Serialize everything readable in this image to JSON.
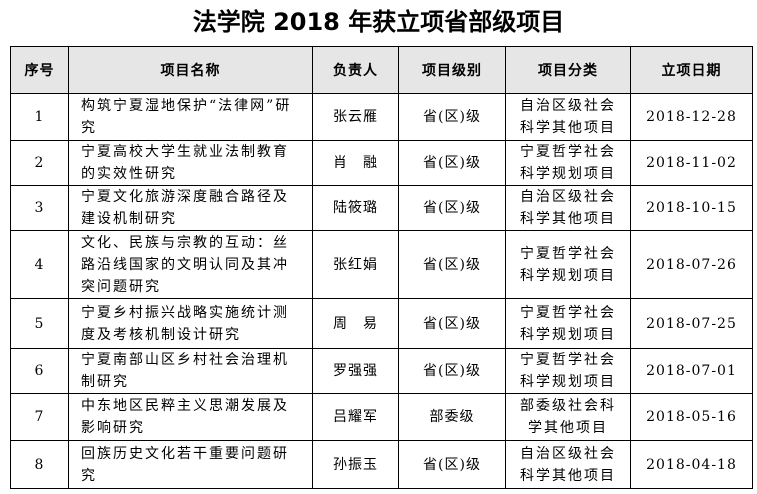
{
  "title": "法学院 2018 年获立项省部级项目",
  "table": {
    "headers": [
      "序号",
      "项目名称",
      "负责人",
      "项目级别",
      "项目分类",
      "立项日期"
    ],
    "rows": [
      [
        "1",
        "构筑宁夏湿地保护“法律网”研究",
        "张云雁",
        "省(区)级",
        "自治区级社会科学其他项目",
        "2018-12-28"
      ],
      [
        "2",
        "宁夏高校大学生就业法制教育的实效性研究",
        "肖　融",
        "省(区)级",
        "宁夏哲学社会科学规划项目",
        "2018-11-02"
      ],
      [
        "3",
        "宁夏文化旅游深度融合路径及建设机制研究",
        "陆筱璐",
        "省(区)级",
        "自治区级社会科学其他项目",
        "2018-10-15"
      ],
      [
        "4",
        "文化、民族与宗教的互动：丝路沿线国家的文明认同及其冲突问题研究",
        "张红娟",
        "省(区)级",
        "宁夏哲学社会科学规划项目",
        "2018-07-26"
      ],
      [
        "5",
        "宁夏乡村振兴战略实施统计测度及考核机制设计研究",
        "周　易",
        "省(区)级",
        "宁夏哲学社会科学规划项目",
        "2018-07-25"
      ],
      [
        "6",
        "宁夏南部山区乡村社会治理机制研究",
        "罗强强",
        "省(区)级",
        "宁夏哲学社会科学规划项目",
        "2018-07-01"
      ],
      [
        "7",
        "中东地区民粹主义思潮发展及影响研究",
        "吕耀军",
        "部委级",
        "部委级社会科学其他项目",
        "2018-05-16"
      ],
      [
        "8",
        "回族历史文化若干重要问题研究",
        "孙振玉",
        "省(区)级",
        "自治区级社会科学其他项目",
        "2018-04-18"
      ]
    ]
  }
}
